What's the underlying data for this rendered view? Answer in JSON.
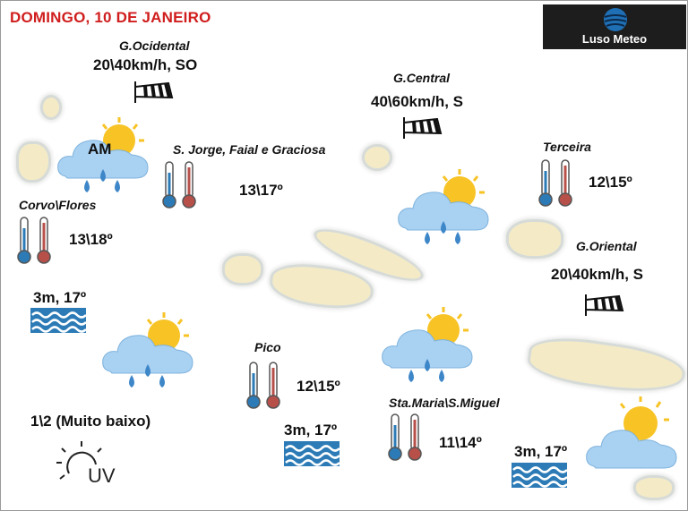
{
  "header": {
    "title": "DOMINGO, 10 DE JANEIRO"
  },
  "logo": {
    "name": "Luso Meteo",
    "colors": {
      "background": "#1d1d1d",
      "globe": "#1f6fb5"
    }
  },
  "cloud_badge": "AM",
  "regions": {
    "g_ocidental": {
      "name": "G.Ocidental",
      "wind": "20\\40km/h, SO"
    },
    "g_central": {
      "name": "G.Central",
      "wind": "40\\60km/h, S"
    },
    "g_oriental": {
      "name": "G.Oriental",
      "wind": "20\\40km/h, S"
    },
    "sjorge": {
      "name": "S. Jorge, Faial e Graciosa",
      "temp": "13\\17º"
    },
    "corvo": {
      "name": "Corvo\\Flores",
      "temp": "13\\18º"
    },
    "terceira": {
      "name": "Terceira",
      "temp": "12\\15º"
    },
    "pico": {
      "name": "Pico",
      "temp": "12\\15º"
    },
    "stamaria": {
      "name": "Sta.Maria\\S.Miguel",
      "temp": "11\\14º"
    }
  },
  "sea": {
    "west": "3m, 17º",
    "center": "3m, 17º",
    "east": "3m, 17º"
  },
  "uv": {
    "value": "1\\2 (Muito baixo)",
    "icon_label": "UV"
  },
  "icons": [
    "sun-cloud-rain-icon",
    "sun-cloud-icon",
    "windsock-icon",
    "thermometer-icon",
    "waves-icon",
    "uv-icon"
  ],
  "colors": {
    "title": "#d01d1d",
    "cloud": "#a9d1f2",
    "sun": "#f7c325",
    "rain": "#3d86c8",
    "island": "#f4ebc6",
    "waves": "#2c7bb6"
  }
}
